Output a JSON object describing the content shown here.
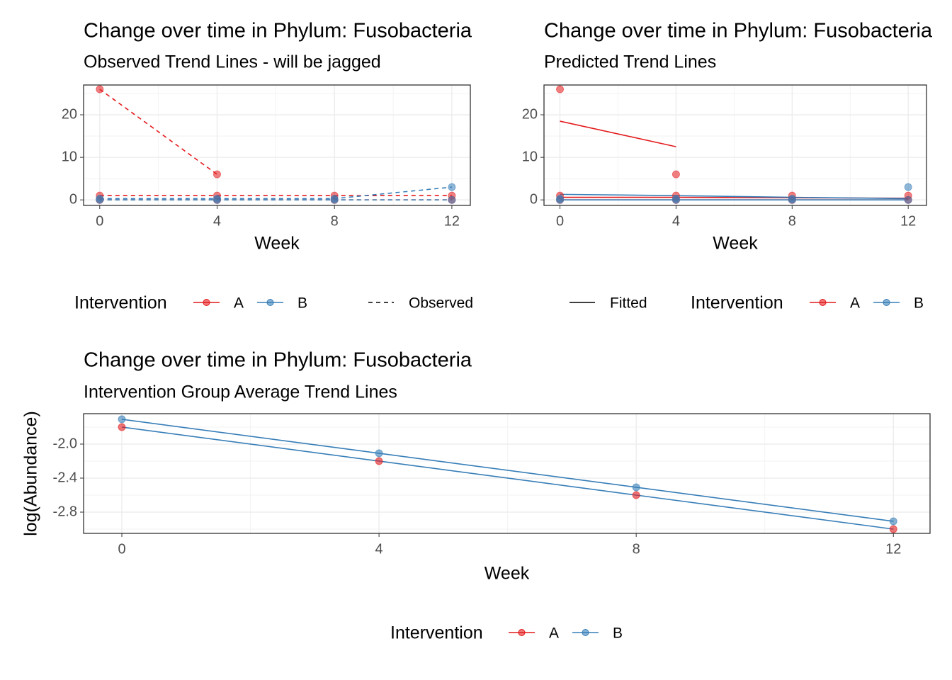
{
  "chart_data": [
    {
      "type": "line",
      "title": "Change over time in Phylum: Fusobacteria",
      "subtitle": "Observed Trend Lines - will be jagged",
      "x_label": "Week",
      "x": [
        0,
        4,
        8,
        12
      ],
      "xlim": [
        -0.55,
        12.63
      ],
      "ylim": [
        -1.3,
        27
      ],
      "xticks": [
        0,
        4,
        8,
        12
      ],
      "yticks": [
        0,
        10,
        20
      ],
      "grid": true,
      "legend_title": "Intervention",
      "linetype_label": "Observed",
      "linetype": "dashed",
      "series": [
        {
          "name": "A",
          "color": "#e41a1c",
          "subjects": [
            [
              26,
              6,
              null,
              null
            ],
            [
              1,
              1,
              1,
              1
            ],
            [
              0,
              0,
              0,
              0
            ]
          ]
        },
        {
          "name": "B",
          "color": "#377eb8",
          "subjects": [
            [
              0.3,
              0.3,
              0.3,
              3
            ],
            [
              0,
              0,
              0,
              0
            ]
          ]
        }
      ]
    },
    {
      "type": "line",
      "title": "Change over time in Phylum: Fusobacteria",
      "subtitle": "Predicted Trend Lines",
      "x_label": "Week",
      "x": [
        0,
        4,
        8,
        12
      ],
      "xlim": [
        -0.55,
        12.63
      ],
      "ylim": [
        -1.3,
        27
      ],
      "xticks": [
        0,
        4,
        8,
        12
      ],
      "yticks": [
        0,
        10,
        20
      ],
      "grid": true,
      "legend_title": "Intervention",
      "linetype_label": "Fitted",
      "linetype": "solid",
      "series": [
        {
          "name": "A",
          "color": "#e41a1c",
          "subjects": [
            [
              26,
              6,
              null,
              null
            ],
            [
              1,
              1,
              1,
              1
            ],
            [
              0,
              0,
              0,
              0
            ]
          ],
          "fitted": [
            [
              18.5,
              12.5,
              null,
              null
            ],
            [
              0.6,
              0.6,
              0.5,
              0.4
            ],
            [
              0,
              0,
              0,
              0
            ]
          ]
        },
        {
          "name": "B",
          "color": "#377eb8",
          "subjects": [
            [
              0.3,
              0.3,
              0.3,
              3
            ],
            [
              0,
              0,
              0,
              0
            ]
          ],
          "fitted": [
            [
              1.3,
              1.0,
              0.6,
              0.3
            ],
            [
              0,
              0,
              0,
              0
            ]
          ]
        }
      ]
    },
    {
      "type": "line",
      "title": "Change over time in Phylum: Fusobacteria",
      "subtitle": "Intervention Group Average Trend Lines",
      "x_label": "Week",
      "y_label": "log(Abundance)",
      "x": [
        0,
        4,
        8,
        12
      ],
      "xlim": [
        -0.595,
        12.57
      ],
      "ylim": [
        -3.05,
        -1.642
      ],
      "xticks": [
        0,
        4,
        8,
        12
      ],
      "yticks": [
        {
          "value": -2,
          "label": "-2.0"
        },
        -2.4,
        -2.8
      ],
      "grid": true,
      "legend_title": "Intervention",
      "series": [
        {
          "name": "A",
          "color": "#e41a1c",
          "line_color": "#377eb8",
          "values": [
            -1.8,
            -2.2,
            -2.6,
            -3.0
          ]
        },
        {
          "name": "B",
          "color": "#377eb8",
          "line_color": "#377eb8",
          "values": [
            -1.708,
            -2.108,
            -2.508,
            -2.908
          ]
        }
      ]
    }
  ]
}
